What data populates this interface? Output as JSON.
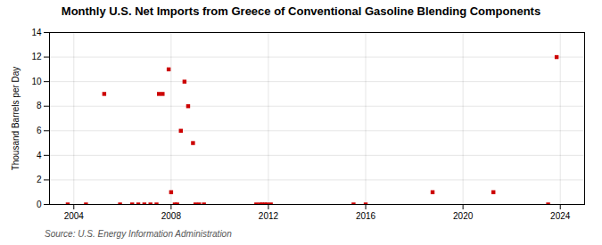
{
  "chart_data": {
    "type": "scatter",
    "title": "Monthly U.S. Net Imports from Greece of Conventional Gasoline Blending Components",
    "ylabel": "Thousand Barrels per Day",
    "source": "Source: U.S. Energy Information Administration",
    "x": [
      2003.75,
      2004.5,
      2005.25,
      2005.9,
      2006.4,
      2006.65,
      2006.9,
      2007.15,
      2007.4,
      2007.5,
      2007.65,
      2007.9,
      2008.0,
      2008.15,
      2008.25,
      2008.4,
      2008.55,
      2008.7,
      2008.9,
      2009.0,
      2009.15,
      2009.35,
      2011.5,
      2011.65,
      2011.75,
      2011.85,
      2011.95,
      2012.1,
      2015.5,
      2016.0,
      2018.75,
      2021.25,
      2023.5,
      2023.85
    ],
    "values": [
      0,
      0,
      9,
      0,
      0,
      0,
      0,
      0,
      0,
      9,
      9,
      11,
      1,
      0,
      0,
      6,
      10,
      8,
      5,
      0,
      0,
      0,
      0,
      0,
      0,
      0,
      0,
      0,
      0,
      0,
      1,
      1,
      0,
      12
    ],
    "color": "#cc0000",
    "marker": "square",
    "xlim": [
      2003.0,
      2025.0
    ],
    "xticks": [
      2004,
      2008,
      2012,
      2016,
      2020,
      2024
    ],
    "ylim": [
      0,
      14
    ],
    "yticks": [
      0,
      2,
      4,
      6,
      8,
      10,
      12,
      14
    ],
    "grid": true
  }
}
